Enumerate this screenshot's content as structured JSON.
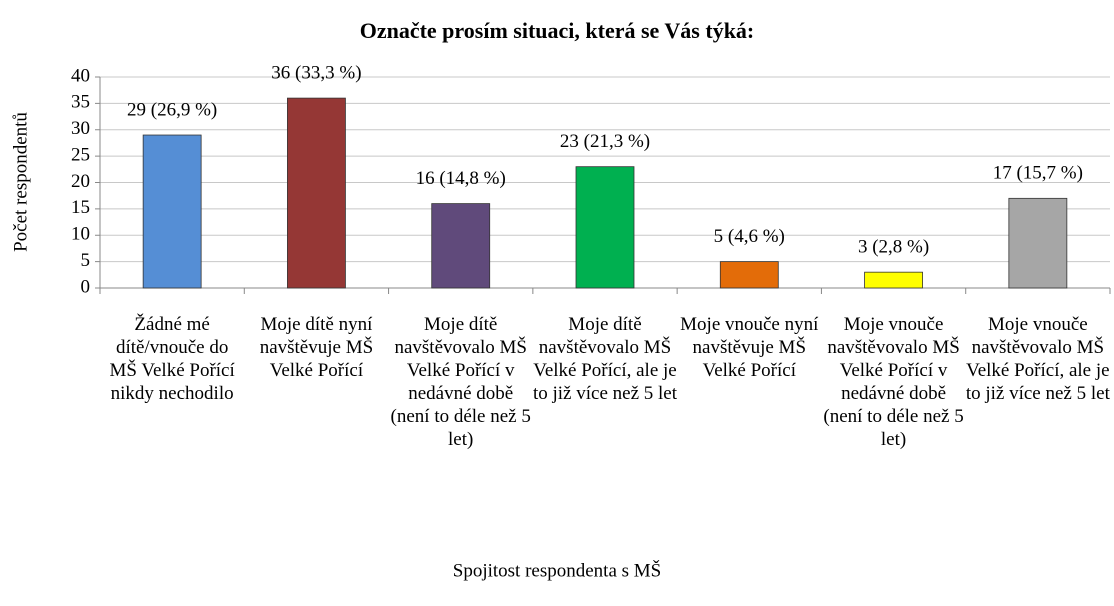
{
  "chart_data": {
    "type": "bar",
    "title": "Označte prosím situaci, která se Vás týká:",
    "x_label": "Spojitost respondenta s MŠ",
    "y_label": "Počet respondentů",
    "categories": [
      "Žádné mé dítě/vnouče do MŠ Velké Pořící nikdy nechodilo",
      "Moje dítě nyní navštěvuje MŠ Velké Pořící",
      "Moje dítě navštěvovalo MŠ Velké Pořící v nedávné době (není to déle než 5 let)",
      "Moje dítě navštěvovalo MŠ Velké Pořící, ale je to již více než 5 let",
      "Moje vnouče nyní navštěvuje MŠ Velké Pořící",
      "Moje vnouče navštěvovalo MŠ Velké Pořící v nedávné době (není to déle než 5 let)",
      "Moje vnouče navštěvovalo MŠ Velké Pořící, ale je to již více než 5 let"
    ],
    "values": [
      29,
      36,
      16,
      23,
      5,
      3,
      17
    ],
    "value_labels": [
      "29 (26,9 %)",
      "36 (33,3 %)",
      "16 (14,8 %)",
      "23 (21,3 %)",
      "5 (4,6 %)",
      "3 (2,8 %)",
      "17 (15,7 %)"
    ],
    "colors": [
      "#558ed5",
      "#953735",
      "#604a7b",
      "#00b050",
      "#e36c09",
      "#ffff00",
      "#a6a6a6"
    ],
    "ylim": [
      0,
      40
    ],
    "yticks": [
      0,
      5,
      10,
      15,
      20,
      25,
      30,
      35,
      40
    ],
    "grid": true
  }
}
